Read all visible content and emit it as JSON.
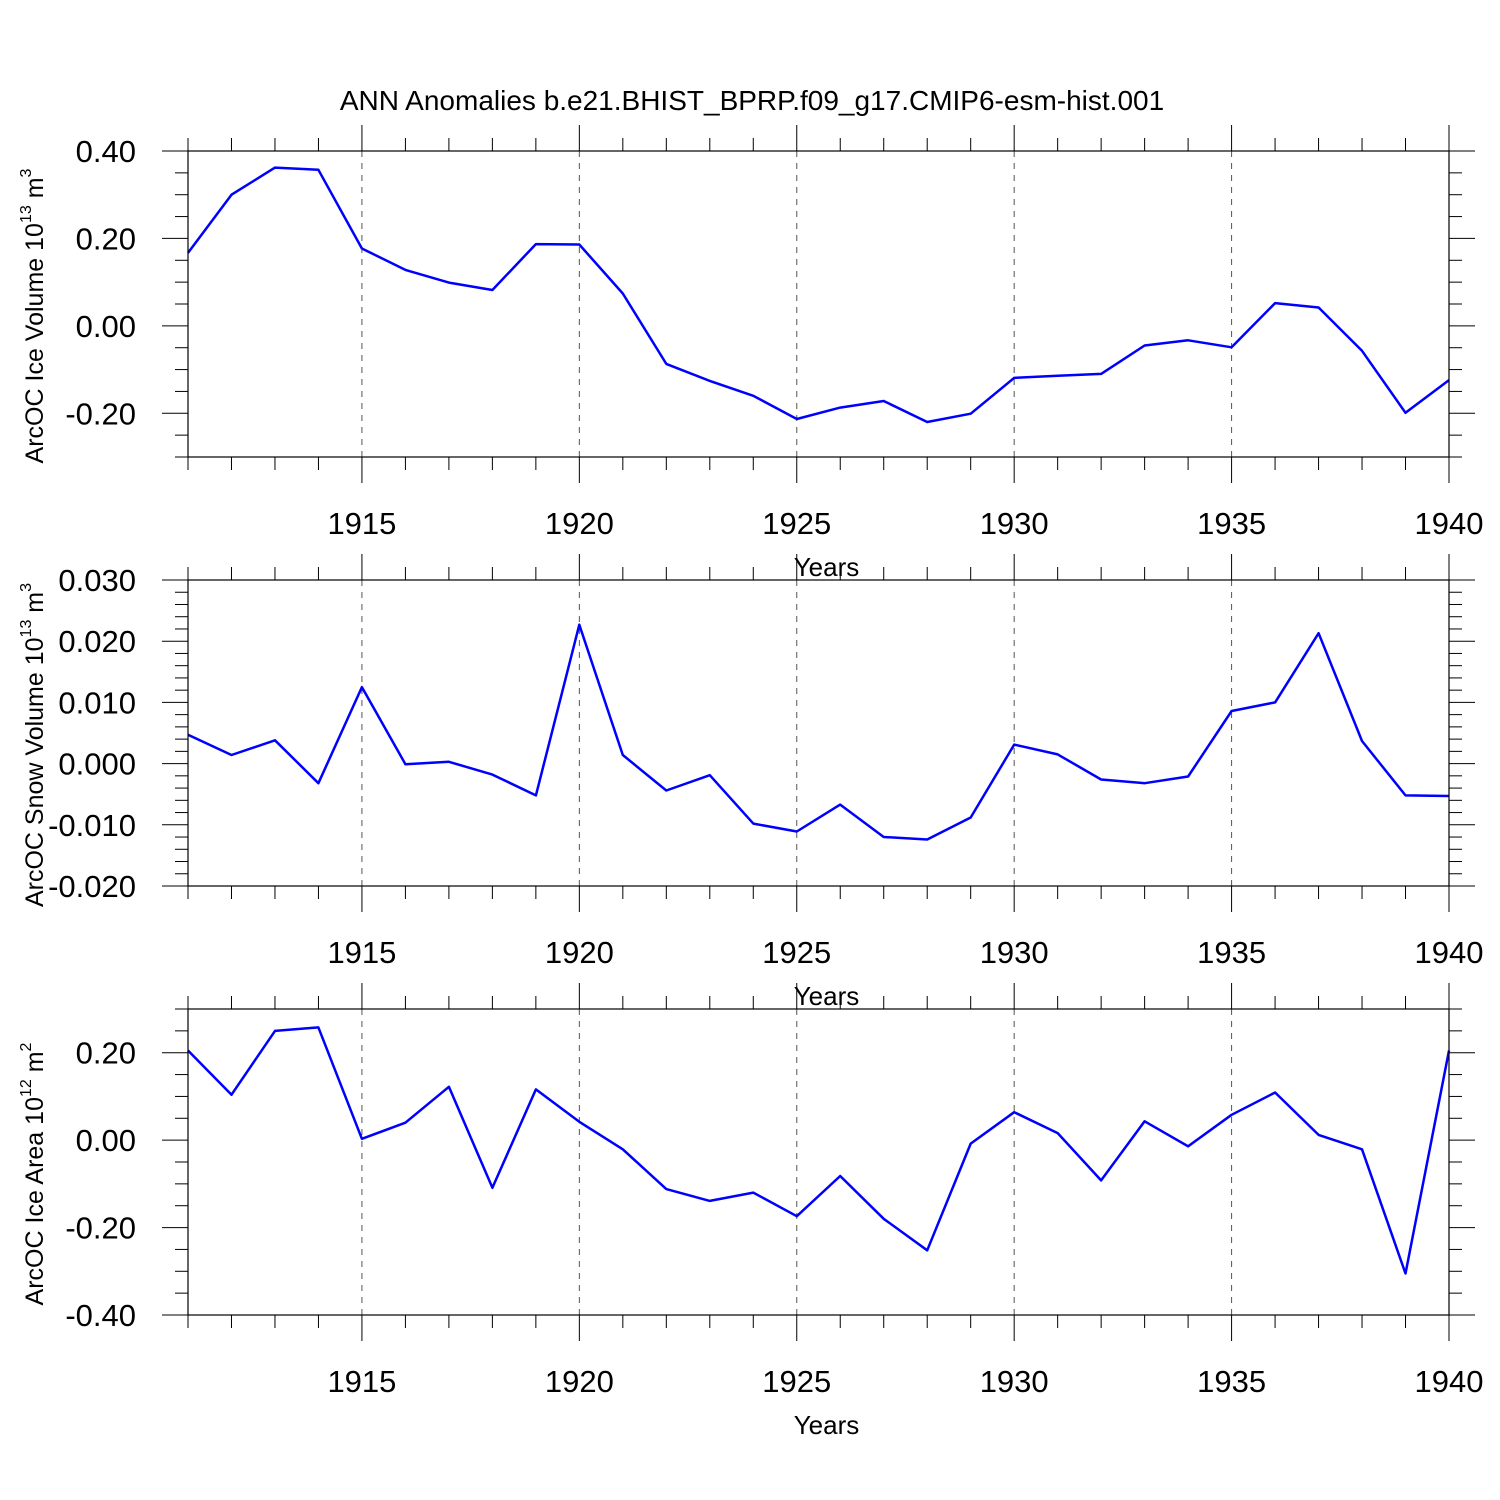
{
  "title": "ANN Anomalies b.e21.BHIST_BPRP.f09_g17.CMIP6-esm-hist.001",
  "colors": {
    "line": "#0000ff",
    "axis": "#000000",
    "grid": "#555555"
  },
  "chart_data": [
    {
      "type": "line",
      "ylabel_main": "ArcOC Ice Volume 10",
      "ylabel_exp": "13",
      "ylabel_unit": " m",
      "ylabel_unit_exp": "3",
      "xlabel": "Years",
      "xlim": [
        1911,
        1940
      ],
      "ylim": [
        -0.3,
        0.4
      ],
      "yticks": [
        0.4,
        0.2,
        0.0,
        -0.2
      ],
      "ytick_labels": [
        "0.40",
        "0.20",
        "0.00",
        "-0.20"
      ],
      "yminor_step": 0.05,
      "xticks": [
        1915,
        1920,
        1925,
        1930,
        1935,
        1940
      ],
      "xtick_labels": [
        "1915",
        "1920",
        "1925",
        "1930",
        "1935",
        "1940"
      ],
      "grid_x": [
        1915,
        1920,
        1925,
        1930,
        1935
      ],
      "x": [
        1911,
        1912,
        1913,
        1914,
        1915,
        1916,
        1917,
        1918,
        1919,
        1920,
        1921,
        1922,
        1923,
        1924,
        1925,
        1926,
        1927,
        1928,
        1929,
        1930,
        1931,
        1932,
        1933,
        1934,
        1935,
        1936,
        1937,
        1938,
        1939,
        1940
      ],
      "series": [
        {
          "values": [
            0.167,
            0.3,
            0.362,
            0.357,
            0.177,
            0.128,
            0.099,
            0.082,
            0.187,
            0.186,
            0.074,
            -0.087,
            -0.126,
            -0.16,
            -0.213,
            -0.187,
            -0.172,
            -0.22,
            -0.201,
            -0.119,
            -0.114,
            -0.11,
            -0.045,
            -0.033,
            -0.049,
            0.052,
            0.042,
            -0.057,
            -0.199,
            -0.124
          ]
        }
      ]
    },
    {
      "type": "line",
      "ylabel_main": "ArcOC Snow Volume 10",
      "ylabel_exp": "13",
      "ylabel_unit": " m",
      "ylabel_unit_exp": "3",
      "xlabel": "Years",
      "xlim": [
        1911,
        1940
      ],
      "ylim": [
        -0.02,
        0.03
      ],
      "yticks": [
        0.03,
        0.02,
        0.01,
        0.0,
        -0.01,
        -0.02
      ],
      "ytick_labels": [
        "0.030",
        "0.020",
        "0.010",
        "0.000",
        "-0.010",
        "-0.020"
      ],
      "yminor_step": 0.002,
      "xticks": [
        1915,
        1920,
        1925,
        1930,
        1935,
        1940
      ],
      "xtick_labels": [
        "1915",
        "1920",
        "1925",
        "1930",
        "1935",
        "1940"
      ],
      "grid_x": [
        1915,
        1920,
        1925,
        1930,
        1935
      ],
      "x": [
        1911,
        1912,
        1913,
        1914,
        1915,
        1916,
        1917,
        1918,
        1919,
        1920,
        1921,
        1922,
        1923,
        1924,
        1925,
        1926,
        1927,
        1928,
        1929,
        1930,
        1931,
        1932,
        1933,
        1934,
        1935,
        1936,
        1937,
        1938,
        1939,
        1940
      ],
      "series": [
        {
          "values": [
            0.0047,
            0.0014,
            0.0038,
            -0.0032,
            0.0125,
            -0.0001,
            0.0003,
            -0.0018,
            -0.0052,
            0.0227,
            0.0014,
            -0.0044,
            -0.0019,
            -0.0098,
            -0.0111,
            -0.0067,
            -0.012,
            -0.0124,
            -0.0088,
            0.0031,
            0.0015,
            -0.0026,
            -0.0032,
            -0.0021,
            0.0086,
            0.01,
            0.0213,
            0.0037,
            -0.0052,
            -0.0053
          ]
        }
      ]
    },
    {
      "type": "line",
      "ylabel_main": "ArcOC Ice Area 10",
      "ylabel_exp": "12",
      "ylabel_unit": " m",
      "ylabel_unit_exp": "2",
      "xlabel": "Years",
      "xlim": [
        1911,
        1940
      ],
      "ylim": [
        -0.4,
        0.3
      ],
      "yticks": [
        0.2,
        0.0,
        -0.2,
        -0.4
      ],
      "ytick_labels": [
        "0.20",
        "0.00",
        "-0.20",
        "-0.40"
      ],
      "yminor_step": 0.05,
      "xticks": [
        1915,
        1920,
        1925,
        1930,
        1935,
        1940
      ],
      "xtick_labels": [
        "1915",
        "1920",
        "1925",
        "1930",
        "1935",
        "1940"
      ],
      "grid_x": [
        1915,
        1920,
        1925,
        1930,
        1935
      ],
      "x": [
        1911,
        1912,
        1913,
        1914,
        1915,
        1916,
        1917,
        1918,
        1919,
        1920,
        1921,
        1922,
        1923,
        1924,
        1925,
        1926,
        1927,
        1928,
        1929,
        1930,
        1931,
        1932,
        1933,
        1934,
        1935,
        1936,
        1937,
        1938,
        1939,
        1940
      ],
      "series": [
        {
          "values": [
            0.205,
            0.104,
            0.25,
            0.258,
            0.003,
            0.04,
            0.122,
            -0.109,
            0.116,
            0.042,
            -0.021,
            -0.112,
            -0.139,
            -0.12,
            -0.174,
            -0.082,
            -0.18,
            -0.252,
            -0.008,
            0.064,
            0.016,
            -0.092,
            0.043,
            -0.014,
            0.058,
            0.109,
            0.012,
            -0.021,
            -0.305,
            0.205
          ]
        }
      ]
    }
  ]
}
